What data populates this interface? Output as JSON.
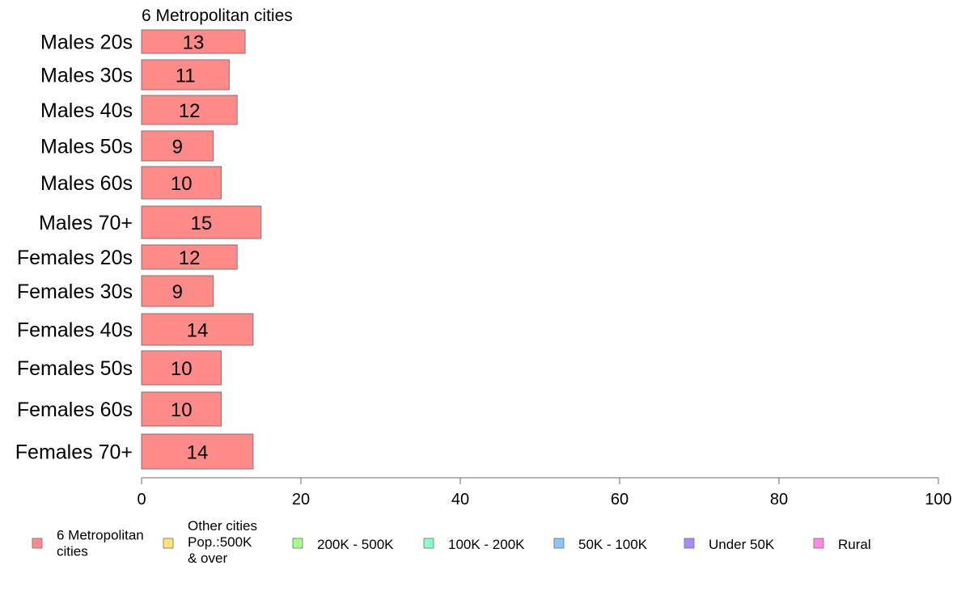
{
  "chart_data": {
    "type": "bar",
    "orientation": "horizontal",
    "title": "6 Metropolitan cities",
    "categories": [
      "Males 20s",
      "Males 30s",
      "Males 40s",
      "Males 50s",
      "Males 60s",
      "Males 70+",
      "Females 20s",
      "Females 30s",
      "Females 40s",
      "Females 50s",
      "Females 60s",
      "Females 70+"
    ],
    "series": [
      {
        "name": "6 Metropolitan cities",
        "color": "#ff8a8a",
        "values": [
          13,
          11,
          12,
          9,
          10,
          15,
          12,
          9,
          14,
          10,
          10,
          14
        ],
        "labels": [
          "13",
          "11",
          "12",
          "9",
          "10",
          "15",
          "12",
          "9",
          "14",
          "10",
          "10",
          "14"
        ]
      }
    ],
    "xlim": [
      0,
      100
    ],
    "xticks": [
      0,
      20,
      40,
      60,
      80,
      100
    ],
    "xtick_labels": [
      "0",
      "20",
      "40",
      "60",
      "80",
      "100"
    ],
    "grid": false,
    "legend_position": "bottom",
    "legend": [
      {
        "lines": [
          "6 Metropolitan",
          " cities"
        ],
        "color": "#ff8a8a"
      },
      {
        "lines": [
          "Other cities",
          "Pop.:500K",
          " & over"
        ],
        "color": "#ffe37a"
      },
      {
        "lines": [
          "200K - 500K"
        ],
        "color": "#a6ff8a"
      },
      {
        "lines": [
          "100K - 200K"
        ],
        "color": "#8affcc"
      },
      {
        "lines": [
          "50K - 100K"
        ],
        "color": "#8ac6ff"
      },
      {
        "lines": [
          "Under 50K"
        ],
        "color": "#a98aff"
      },
      {
        "lines": [
          "Rural"
        ],
        "color": "#ff8ae8"
      }
    ]
  }
}
